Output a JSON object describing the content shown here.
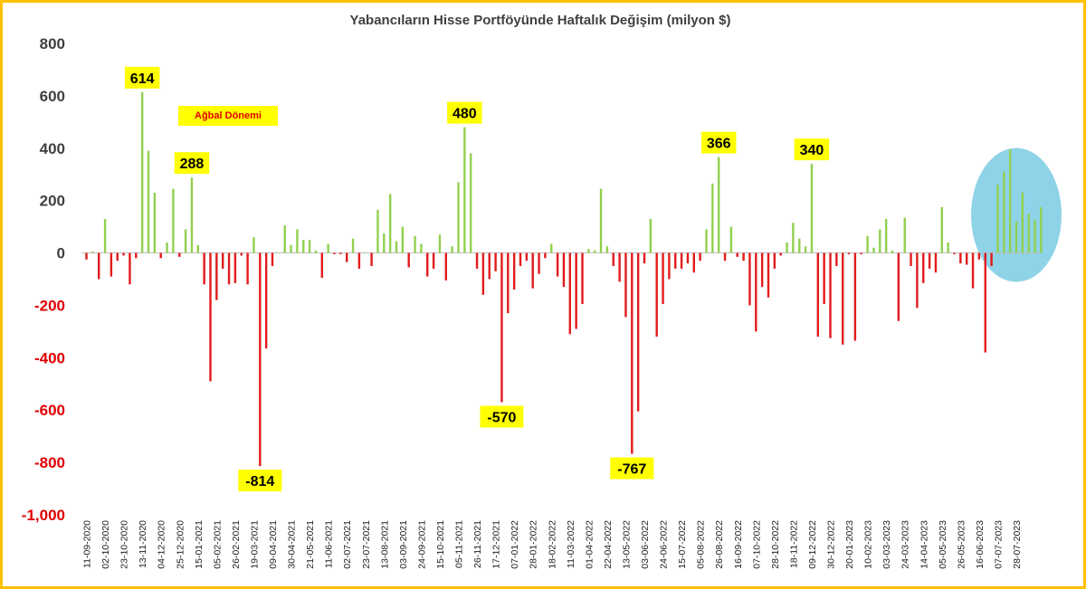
{
  "chart_data": {
    "type": "bar",
    "title": "Yabancıların Hisse Portföyünde Haftalık Değişim (milyon $)",
    "ylim": [
      -1000,
      800
    ],
    "yticks": [
      800,
      600,
      400,
      200,
      0,
      -200,
      -400,
      -600,
      -800,
      -1000
    ],
    "ytick_labels": [
      "800",
      "600",
      "400",
      "200",
      "0",
      "-200",
      "-400",
      "-600",
      "-800",
      "-1,000"
    ],
    "x_start": "11-09-2020",
    "x_labels": [
      "11-09-2020",
      "02-10-2020",
      "23-10-2020",
      "13-11-2020",
      "04-12-2020",
      "25-12-2020",
      "15-01-2021",
      "05-02-2021",
      "26-02-2021",
      "19-03-2021",
      "09-04-2021",
      "30-04-2021",
      "21-05-2021",
      "11-06-2021",
      "02-07-2021",
      "23-07-2021",
      "13-08-2021",
      "03-09-2021",
      "24-09-2021",
      "15-10-2021",
      "05-11-2021",
      "26-11-2021",
      "17-12-2021",
      "07-01-2022",
      "28-01-2022",
      "18-02-2022",
      "11-03-2022",
      "01-04-2022",
      "22-04-2022",
      "13-05-2022",
      "03-06-2022",
      "24-06-2022",
      "15-07-2022",
      "05-08-2022",
      "26-08-2022",
      "16-09-2022",
      "07-10-2022",
      "28-10-2022",
      "18-11-2022",
      "09-12-2022",
      "30-12-2022",
      "20-01-2023",
      "10-02-2023",
      "03-03-2023",
      "24-03-2023",
      "14-04-2023",
      "05-05-2023",
      "26-05-2023",
      "16-06-2023",
      "07-07-2023",
      "28-07-2023"
    ],
    "values": [
      -25,
      5,
      -100,
      130,
      -90,
      -30,
      -10,
      -120,
      -20,
      614,
      390,
      230,
      -20,
      40,
      245,
      -15,
      90,
      288,
      30,
      -120,
      -490,
      -180,
      -60,
      -120,
      -115,
      -10,
      -120,
      60,
      -814,
      -365,
      -50,
      0,
      105,
      30,
      90,
      50,
      50,
      10,
      -95,
      35,
      -5,
      -5,
      -35,
      55,
      -60,
      0,
      -50,
      165,
      75,
      225,
      45,
      100,
      -55,
      65,
      35,
      -90,
      -60,
      70,
      -105,
      25,
      270,
      480,
      380,
      -60,
      -160,
      -100,
      -70,
      -570,
      -230,
      -140,
      -50,
      -30,
      -135,
      -80,
      -20,
      35,
      -90,
      -130,
      -310,
      -290,
      -195,
      15,
      10,
      245,
      25,
      -50,
      -110,
      -245,
      -767,
      -605,
      -40,
      130,
      -320,
      -195,
      -100,
      -60,
      -60,
      -40,
      -75,
      -30,
      90,
      265,
      366,
      -30,
      100,
      -15,
      -30,
      -200,
      -300,
      -130,
      -170,
      -60,
      -10,
      40,
      115,
      55,
      25,
      340,
      -320,
      -195,
      -325,
      -50,
      -350,
      -5,
      -335,
      -5,
      65,
      20,
      90,
      130,
      10,
      -260,
      135,
      -50,
      -210,
      -115,
      -60,
      -75,
      175,
      40,
      -5,
      -40,
      -45,
      -135,
      -25,
      -380,
      -50,
      260,
      310,
      395,
      120,
      230,
      150,
      125,
      175
    ],
    "callouts": [
      {
        "index": 9,
        "value": 614,
        "text": "614"
      },
      {
        "index": 17,
        "value": 288,
        "text": "288"
      },
      {
        "index": 28,
        "value": -814,
        "text": "-814"
      },
      {
        "index": 61,
        "value": 480,
        "text": "480"
      },
      {
        "index": 67,
        "value": -570,
        "text": "-570"
      },
      {
        "index": 88,
        "value": -767,
        "text": "-767"
      },
      {
        "index": 102,
        "value": 366,
        "text": "366"
      },
      {
        "index": 117,
        "value": 340,
        "text": "340"
      }
    ],
    "note": "Ağbal Dönemi",
    "positive_color": "#92d050",
    "negative_color": "#e31a1c",
    "highlight_color": "#8fd3e8",
    "zero_line_color": "#bfbfbf",
    "callout_color": "#ffff00",
    "ytick_positive_color": "#404040",
    "ytick_negative_color": "#e00000",
    "frame_color": "#ffc000"
  }
}
